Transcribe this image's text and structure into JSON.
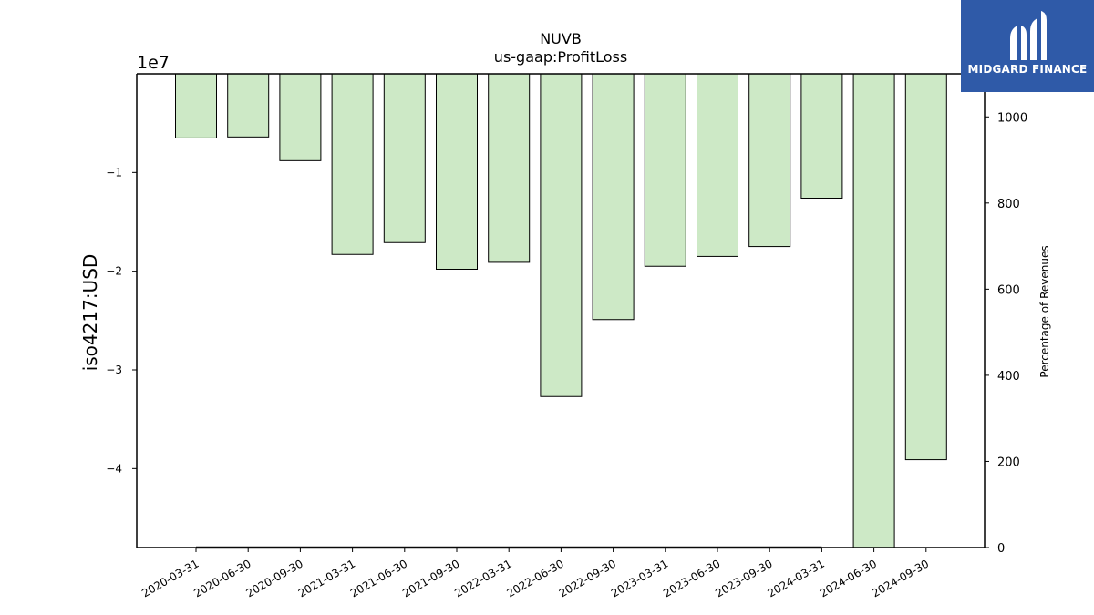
{
  "chart_data": {
    "type": "bar",
    "title": "NUVB",
    "subtitle": "us-gaap:ProfitLoss",
    "ylabel": "iso4217:USD",
    "y2label": "Percentage of Revenues",
    "y_offset_label": "1e7",
    "ylim": [
      -4.8,
      0.0
    ],
    "y_unit_multiplier": 10000000,
    "yticks": [
      -1,
      -2,
      -3,
      -4
    ],
    "ytick_labels": [
      "−1",
      "−2",
      "−3",
      "−4"
    ],
    "y2lim": [
      0,
      1100
    ],
    "y2ticks": [
      0,
      200,
      400,
      600,
      800,
      1000
    ],
    "y2tick_labels": [
      "0",
      "200",
      "400",
      "600",
      "800",
      "1000"
    ],
    "categories": [
      "2020-03-31",
      "2020-06-30",
      "2020-09-30",
      "2021-03-31",
      "2021-06-30",
      "2021-09-30",
      "2022-03-31",
      "2022-06-30",
      "2022-09-30",
      "2023-03-31",
      "2023-06-30",
      "2023-09-30",
      "2024-03-31",
      "2024-06-30",
      "2024-09-30"
    ],
    "values": [
      -0.65,
      -0.64,
      -0.88,
      -1.83,
      -1.71,
      -1.98,
      -1.91,
      -3.27,
      -2.49,
      -1.95,
      -1.85,
      -1.75,
      -1.26,
      -4.8,
      -3.91
    ],
    "secondary_series": {
      "type": "line",
      "values": [
        0,
        0,
        0,
        0,
        0,
        0,
        0,
        0,
        0,
        0,
        0,
        0,
        0
      ],
      "categories": [
        "2020-03-31",
        "2020-06-30",
        "2020-09-30",
        "2021-03-31",
        "2021-06-30",
        "2021-09-30",
        "2022-03-31",
        "2022-06-30",
        "2022-09-30",
        "2023-03-31",
        "2023-06-30",
        "2023-09-30",
        "2024-03-31"
      ]
    },
    "colors": {
      "bar_fill": "#cde9c6",
      "bar_edge": "#000000",
      "line": "#1f1f1f"
    },
    "grid": false
  },
  "logo": {
    "text": "MIDGARD FINANCE",
    "background": "#2f5aa8"
  }
}
